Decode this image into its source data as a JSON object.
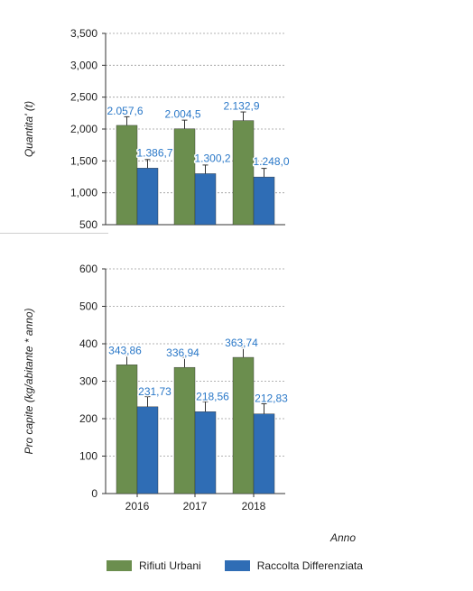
{
  "chart_data": [
    {
      "type": "bar",
      "ylabel": "Quantita' (t)",
      "xlabel": "",
      "categories": [
        "2016",
        "2017",
        "2018"
      ],
      "ylim": [
        500,
        3500
      ],
      "yticks": [
        "500",
        "1,000",
        "1,500",
        "2,000",
        "2,500",
        "3,000",
        "3,500"
      ],
      "grid": true,
      "series": [
        {
          "name": "Rifiuti Urbani",
          "values": [
            2057.6,
            2004.5,
            2132.9
          ],
          "labels": [
            "2.057,6",
            "2.004,5",
            "2.132,9"
          ],
          "color": "#6b8e4e"
        },
        {
          "name": "Raccolta Differenziata",
          "values": [
            1386.7,
            1300.2,
            1248.0
          ],
          "labels": [
            "1.386,7",
            "1.300,2",
            "1.248,0"
          ],
          "color": "#2f6db5"
        }
      ]
    },
    {
      "type": "bar",
      "ylabel": "Pro capite (kg/abitante * anno)",
      "xlabel": "Anno",
      "categories": [
        "2016",
        "2017",
        "2018"
      ],
      "ylim": [
        0,
        600
      ],
      "yticks": [
        "0",
        "100",
        "200",
        "300",
        "400",
        "500",
        "600"
      ],
      "grid": true,
      "series": [
        {
          "name": "Rifiuti Urbani",
          "values": [
            343.86,
            336.94,
            363.74
          ],
          "labels": [
            "343,86",
            "336,94",
            "363,74"
          ],
          "color": "#6b8e4e"
        },
        {
          "name": "Raccolta Differenziata",
          "values": [
            231.73,
            218.56,
            212.83
          ],
          "labels": [
            "231,73",
            "218,56",
            "212,83"
          ],
          "color": "#2f6db5"
        }
      ]
    }
  ],
  "legend": {
    "position": "bottom",
    "items": [
      {
        "label": "Rifiuti Urbani",
        "color": "#6b8e4e"
      },
      {
        "label": "Raccolta Differenziata",
        "color": "#2f6db5"
      }
    ]
  }
}
